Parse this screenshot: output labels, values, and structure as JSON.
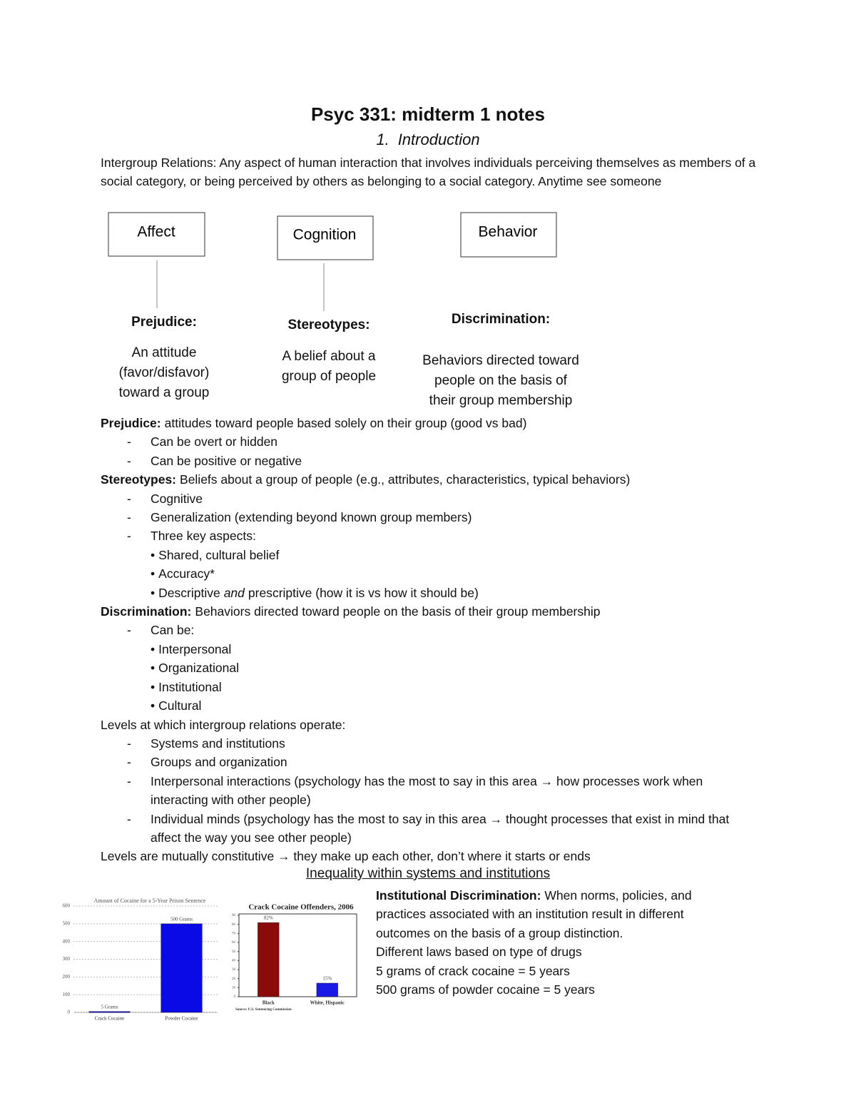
{
  "title": "Psyc 331: midterm 1 notes",
  "section": {
    "number": "1.",
    "title": "Introduction"
  },
  "intro": "Intergroup Relations: Any aspect of human interaction that involves individuals perceiving themselves as members of a social category, or being perceived by others as belonging to a social category. Anytime see someone",
  "markers": {
    "dash": "-",
    "bullet": "•"
  },
  "diagram": {
    "columns": [
      {
        "box": "Affect",
        "term": "Prejudice:",
        "definition": [
          "An attitude",
          "(favor/disfavor)",
          "toward a group"
        ]
      },
      {
        "box": "Cognition",
        "term": "Stereotypes:",
        "definition": [
          "A belief about a",
          "group of people"
        ]
      },
      {
        "box": "Behavior",
        "term": "Discrimination:",
        "definition": [
          "Behaviors directed toward",
          "people on the basis of",
          "their group membership"
        ]
      }
    ]
  },
  "notes": [
    {
      "term": "Prejudice:",
      "text": "attitudes toward people based solely on their group (good vs bad)",
      "items": [
        {
          "text": "Can be overt or hidden"
        },
        {
          "text": "Can be positive or negative"
        }
      ]
    },
    {
      "term": "Stereotypes:",
      "text": "Beliefs about a group of people (e.g., attributes, characteristics, typical behaviors)",
      "items": [
        {
          "text": "Cognitive"
        },
        {
          "text": "Generalization (extending beyond known group members)"
        },
        {
          "text": "Three key aspects:",
          "bullets": [
            [
              "Shared, cultural belief"
            ],
            [
              "Accuracy*"
            ],
            [
              "Descriptive",
              "and",
              "prescriptive (how it is vs how it should be)"
            ]
          ]
        }
      ]
    },
    {
      "term": "Discrimination:",
      "text": "Behaviors directed toward people on the basis of their group membership",
      "items": [
        {
          "text": "Can be:",
          "bullets": [
            [
              "Interpersonal"
            ],
            [
              "Organizational"
            ],
            [
              "Institutional"
            ],
            [
              "Cultural"
            ]
          ]
        }
      ]
    },
    {
      "text": "Levels at which intergroup relations operate:",
      "items": [
        {
          "text": "Systems and institutions"
        },
        {
          "text": "Groups and organization"
        },
        {
          "text": "Interpersonal interactions (psychology has the most to say in this area → how processes work when interacting with other people)"
        },
        {
          "text": "Individual minds (psychology has the most to say in this area → thought processes that exist in mind that affect the way you see other people)"
        }
      ]
    },
    {
      "text": "Levels are mutually constitutive → they make up each other, don’t where it starts or ends"
    }
  ],
  "heading": "Inequality within systems and institutions",
  "institutional": {
    "term": "Institutional Discrimination:",
    "text": "When norms, policies, and practices associated with an institution result in different outcomes on the basis of a group distinction.",
    "lines": [
      "Different laws based on type of drugs",
      "5 grams of crack cocaine = 5 years",
      "500 grams of powder cocaine = 5 years"
    ]
  },
  "chart_data": [
    {
      "type": "bar",
      "title": "Amount of Cocaine for a 5-Year Prison Sentence",
      "categories": [
        "Crack Cocaine",
        "Powder Cocaine"
      ],
      "values": [
        5,
        500
      ],
      "value_labels": [
        "5 Grams",
        "500 Grams"
      ],
      "colors": [
        "#0a0ae6",
        "#0a0ae6"
      ],
      "ylim": [
        0,
        600
      ],
      "yticks": [
        0,
        100,
        200,
        300,
        400,
        500,
        600
      ],
      "grid": true
    },
    {
      "type": "bar",
      "title": "Crack Cocaine Offenders, 2006",
      "source": "Source: U.S. Sentencing Commission",
      "categories": [
        "Black",
        "White, Hispanic"
      ],
      "values": [
        82,
        15
      ],
      "value_labels": [
        "82%",
        "15%"
      ],
      "colors": [
        "#8b0a0a",
        "#1a1ae6"
      ],
      "ylim": [
        0,
        90
      ],
      "yticks": [
        0,
        10,
        20,
        30,
        40,
        50,
        60,
        70,
        80,
        90
      ],
      "grid": false
    }
  ]
}
